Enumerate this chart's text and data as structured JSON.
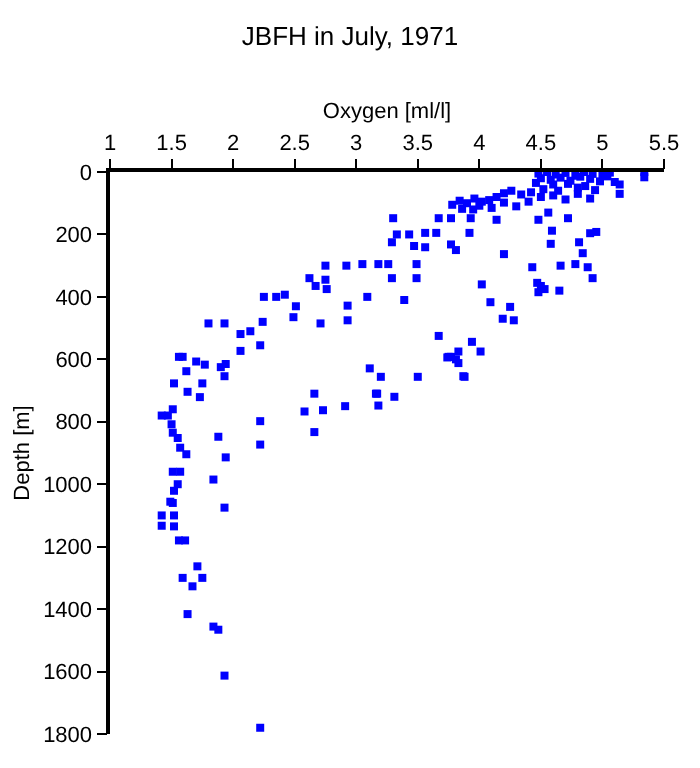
{
  "chart_data": {
    "type": "scatter",
    "title": "JBFH in July, 1971",
    "xlabel": "Oxygen [ml/l]",
    "ylabel": "Depth [m]",
    "xlim": [
      1,
      5.5
    ],
    "xticks": [
      1,
      1.5,
      2,
      2.5,
      3,
      3.5,
      4,
      4.5,
      5,
      5.5
    ],
    "ylim": [
      1800,
      0
    ],
    "yticks": [
      0,
      200,
      400,
      600,
      800,
      1000,
      1200,
      1400,
      1600,
      1800
    ],
    "marker": "square",
    "series": [
      {
        "color": "#0000ff",
        "x": [
          5.34,
          5.34,
          4.48,
          4.55,
          4.62,
          4.7,
          4.78,
          4.85,
          4.92,
          5.0,
          5.06,
          4.5,
          4.58,
          4.66,
          4.74,
          4.82,
          4.9,
          4.98,
          5.04,
          4.46,
          4.6,
          4.72,
          4.86,
          5.1,
          4.52,
          4.64,
          4.8,
          4.94,
          5.14,
          5.14,
          4.5,
          4.6,
          4.7,
          4.8,
          4.9,
          4.42,
          4.34,
          4.26,
          4.2,
          4.14,
          4.08,
          4.02,
          3.96,
          3.9,
          3.84,
          3.78,
          4.3,
          4.1,
          3.95,
          4.4,
          4.2,
          4.0,
          3.86,
          3.3,
          3.67,
          3.77,
          3.93,
          4.14,
          4.48,
          4.56,
          4.72,
          3.33,
          3.43,
          3.56,
          3.65,
          3.92,
          4.59,
          4.9,
          4.95,
          3.29,
          3.47,
          3.56,
          3.77,
          3.81,
          4.2,
          4.58,
          4.81,
          4.84,
          2.75,
          2.92,
          3.05,
          3.18,
          3.26,
          3.49,
          4.43,
          4.66,
          4.78,
          4.88,
          2.62,
          2.75,
          3.29,
          3.49,
          4.02,
          4.47,
          4.92,
          2.67,
          2.76,
          4.5,
          4.53,
          4.65,
          4.48,
          2.25,
          2.35,
          2.42,
          3.09,
          3.39,
          4.09,
          2.51,
          2.93,
          4.25,
          1.8,
          1.93,
          2.06,
          2.14,
          2.24,
          2.49,
          2.71,
          2.93,
          4.19,
          4.28,
          1.56,
          1.59,
          1.7,
          1.77,
          1.62,
          1.9,
          1.94,
          2.06,
          2.22,
          1.93,
          1.52,
          1.75,
          1.63,
          1.73,
          1.42,
          1.47,
          1.51,
          1.5,
          1.51,
          1.55,
          1.57,
          1.62,
          1.51,
          1.57,
          1.55,
          1.52,
          1.49,
          1.51,
          1.42,
          1.52,
          1.88,
          1.94,
          1.84,
          1.93,
          2.22,
          2.22,
          3.11,
          3.2,
          3.5,
          3.67,
          2.66,
          2.58,
          2.73,
          2.66,
          2.91,
          3.17,
          3.18,
          3.31,
          3.75,
          3.77,
          3.87,
          3.94,
          3.83,
          3.74,
          3.81,
          3.83,
          4.01,
          3.88,
          3.16,
          1.42,
          1.52,
          1.56,
          1.61,
          1.71,
          1.59,
          1.75,
          1.67,
          1.63,
          1.84,
          1.88,
          1.93,
          2.22
        ],
        "values": [
          0,
          17,
          5,
          0,
          8,
          3,
          12,
          0,
          6,
          10,
          2,
          20,
          25,
          18,
          28,
          15,
          22,
          30,
          14,
          35,
          40,
          38,
          45,
          32,
          55,
          60,
          50,
          58,
          40,
          70,
          80,
          75,
          88,
          70,
          85,
          65,
          72,
          60,
          68,
          80,
          90,
          95,
          85,
          100,
          92,
          105,
          110,
          115,
          120,
          95,
          98,
          108,
          118,
          148,
          148,
          148,
          148,
          153,
          153,
          130,
          148,
          200,
          200,
          195,
          195,
          195,
          188,
          196,
          192,
          225,
          237,
          241,
          232,
          250,
          263,
          230,
          225,
          260,
          300,
          300,
          295,
          295,
          295,
          295,
          305,
          300,
          295,
          305,
          340,
          345,
          340,
          340,
          360,
          355,
          340,
          365,
          375,
          365,
          375,
          380,
          385,
          400,
          400,
          393,
          400,
          410,
          417,
          430,
          428,
          432,
          485,
          485,
          519,
          510,
          480,
          465,
          485,
          475,
          470,
          475,
          592,
          592,
          607,
          617,
          638,
          625,
          615,
          573,
          555,
          654,
          677,
          677,
          704,
          721,
          780,
          780,
          760,
          808,
          835,
          852,
          883,
          904,
          960,
          960,
          1000,
          1021,
          1056,
          1060,
          1100,
          1100,
          848,
          914,
          985,
          1075,
          798,
          873,
          629,
          656,
          656,
          525,
          710,
          767,
          763,
          833,
          750,
          710,
          748,
          720,
          592,
          592,
          654,
          544,
          575,
          594,
          600,
          612,
          575,
          656,
          710,
          1133,
          1135,
          1180,
          1180,
          1263,
          1300,
          1300,
          1327,
          1416,
          1456,
          1466,
          1613,
          1780
        ]
      }
    ]
  }
}
